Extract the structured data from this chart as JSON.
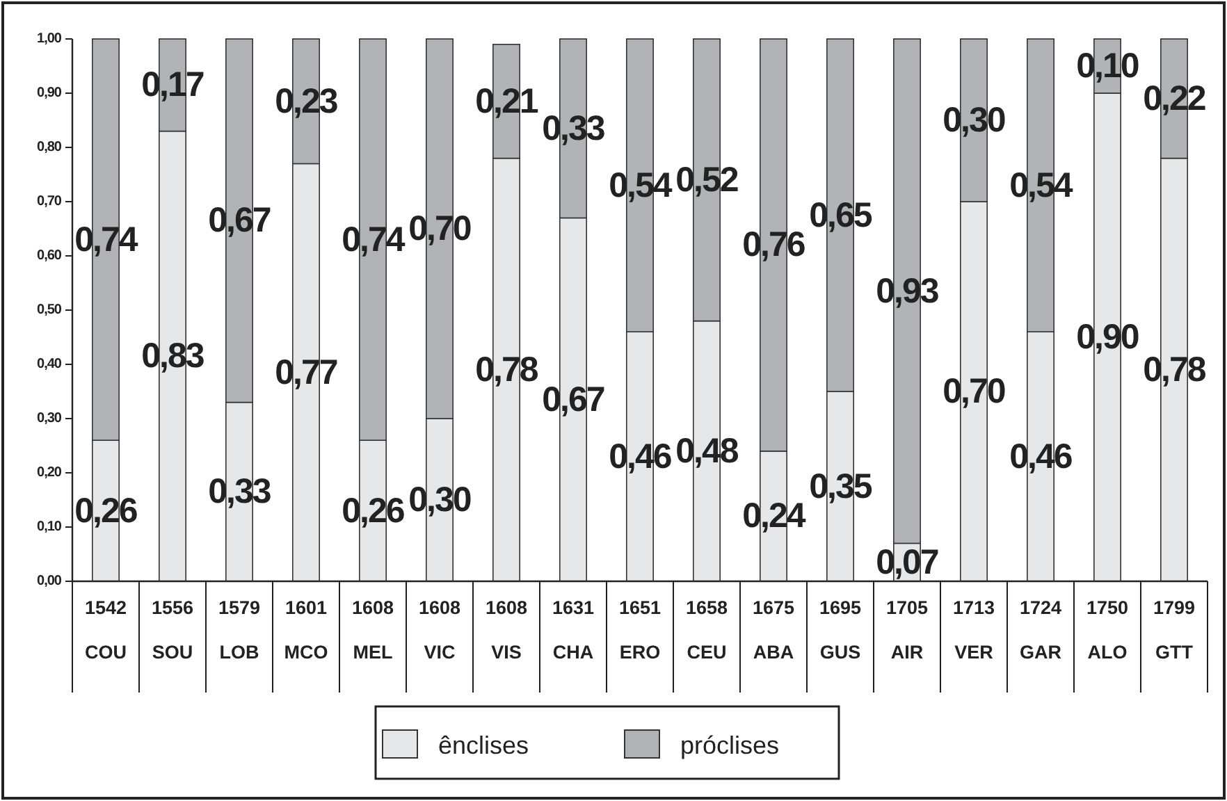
{
  "chart_data": {
    "type": "bar",
    "stacked": true,
    "data_labels": true,
    "categories": [
      "1542\nCOU",
      "1556\nSOU",
      "1579\nLOB",
      "1601\nMCO",
      "1608\nMEL",
      "1608\nVIC",
      "1608\nVIS",
      "1631\nCHA",
      "1651\nERO",
      "1658\nCEU",
      "1675\nABA",
      "1695\nGUS",
      "1705\nAIR",
      "1713\nVER",
      "1724\nGAR",
      "1750\nALO",
      "1799\nGTT"
    ],
    "series": [
      {
        "name": "ênclises",
        "color": "#e6e7e8",
        "values": [
          0.26,
          0.83,
          0.33,
          0.77,
          0.26,
          0.3,
          0.78,
          0.67,
          0.46,
          0.48,
          0.24,
          0.35,
          0.07,
          0.7,
          0.46,
          0.9,
          0.78
        ],
        "value_labels": [
          "0,26",
          "0,83",
          "0,33",
          "0,77",
          "0,26",
          "0,30",
          "0,78",
          "0,67",
          "0,46",
          "0,48",
          "0,24",
          "0,35",
          "0,07",
          "0,70",
          "0,46",
          "0,90",
          "0,78"
        ]
      },
      {
        "name": "próclises",
        "color": "#b1b3b6",
        "values": [
          0.74,
          0.17,
          0.67,
          0.23,
          0.74,
          0.7,
          0.21,
          0.33,
          0.54,
          0.52,
          0.76,
          0.65,
          0.93,
          0.3,
          0.54,
          0.1,
          0.22
        ],
        "value_labels": [
          "0,74",
          "0,17",
          "0,67",
          "0,23",
          "0,74",
          "0,70",
          "0,21",
          "0,33",
          "0,54",
          "0,52",
          "0,76",
          "0,65",
          "0,93",
          "0,30",
          "0,54",
          "0,10",
          "0,22"
        ]
      }
    ],
    "ylim": [
      0,
      1
    ],
    "yticks": [
      {
        "value": 0,
        "label": "0,00"
      },
      {
        "value": 0.1,
        "label": "0,10"
      },
      {
        "value": 0.2,
        "label": "0,20"
      },
      {
        "value": 0.3,
        "label": "0,30"
      },
      {
        "value": 0.4,
        "label": "0,40"
      },
      {
        "value": 0.5,
        "label": "0,50"
      },
      {
        "value": 0.6,
        "label": "0,60"
      },
      {
        "value": 0.7,
        "label": "0,70"
      },
      {
        "value": 0.8,
        "label": "0,80"
      },
      {
        "value": 0.9,
        "label": "0,90"
      },
      {
        "value": 1,
        "label": "1,00"
      }
    ],
    "grid": false,
    "legend": "bottom"
  }
}
